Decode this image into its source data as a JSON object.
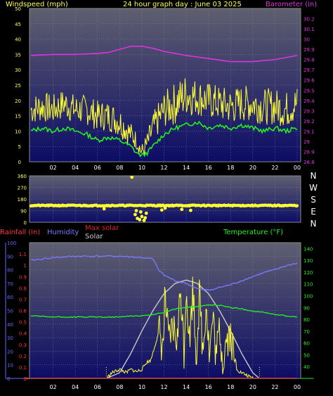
{
  "colors": {
    "background": "#000000",
    "plot_top": "#5f5f70",
    "plot_bottom": "#0c0c66",
    "wind_high": "#ffff33",
    "wind_avg": "#22ee22",
    "barometer": "#dd33dd",
    "direction": "#ffff33",
    "rain": "#ff3333",
    "humidity": "#7777ff",
    "max_solar": "#c8c8c8",
    "solar": "#ffff33",
    "temperature": "#22ee22",
    "tick_text": "#ffffff",
    "left_axis_text": "#ffff55",
    "baro_axis_text": "#dd33dd",
    "temp_axis_text": "#22ee22",
    "rain_axis_text": "#6666ff"
  },
  "chart_data": [
    {
      "type": "line",
      "title": "24 hour graph day : June 03 2025",
      "ylabel": "Windspeed (mph)",
      "y2label": "Barometer (in)",
      "x_ticks": [
        "02",
        "04",
        "06",
        "08",
        "10",
        "12",
        "14",
        "16",
        "18",
        "20",
        "22",
        "00"
      ],
      "ylim": [
        0,
        50
      ],
      "y_ticks": [
        0,
        5,
        10,
        15,
        20,
        25,
        30,
        35,
        40,
        45,
        50
      ],
      "y2lim": [
        28.8,
        30.3
      ],
      "y2_ticks": [
        "28.8",
        "28.9",
        "29",
        "29.1",
        "29.2",
        "29.3",
        "29.4",
        "29.5",
        "29.6",
        "29.7",
        "29.8",
        "29.9",
        "30",
        "30.1",
        "30.2"
      ],
      "grid": true,
      "series": [
        {
          "key": "barometer",
          "hours": [
            0,
            2,
            4,
            6,
            7,
            8,
            9,
            10,
            11,
            12,
            14,
            16,
            18,
            20,
            22,
            24
          ],
          "values": [
            29.84,
            29.85,
            29.85,
            29.86,
            29.87,
            29.9,
            29.93,
            29.93,
            29.91,
            29.88,
            29.84,
            29.81,
            29.78,
            29.78,
            29.8,
            29.84
          ]
        },
        {
          "key": "wind_avg",
          "hours": [
            0,
            1,
            2,
            3,
            4,
            5,
            6,
            7,
            8,
            9,
            9.5,
            10,
            10.5,
            11,
            12,
            13,
            14,
            15,
            16,
            17,
            18,
            19,
            20,
            21,
            22,
            23,
            24
          ],
          "values": [
            10,
            11,
            10,
            11,
            10,
            9,
            7,
            8,
            7,
            5,
            3,
            2,
            3,
            5,
            9,
            11,
            12,
            13,
            11,
            12,
            11,
            12,
            11,
            10,
            11,
            10,
            11
          ]
        },
        {
          "key": "wind_high",
          "hours": [
            0,
            1,
            2,
            3,
            4,
            5,
            6,
            7,
            8,
            9,
            9.5,
            10,
            10.5,
            11,
            12,
            13,
            14,
            15,
            16,
            17,
            18,
            19,
            20,
            21,
            22,
            23,
            24
          ],
          "values": [
            17,
            18,
            17,
            19,
            17,
            17,
            15,
            15,
            13,
            9,
            7,
            3,
            6,
            11,
            17,
            19,
            22,
            21,
            20,
            19,
            18,
            19,
            19,
            18,
            18,
            17,
            19
          ],
          "spread": [
            5,
            5,
            5,
            5,
            5,
            5,
            5,
            5,
            5,
            4,
            3,
            3,
            4,
            5,
            6,
            7,
            7,
            6,
            6,
            6,
            6,
            6,
            6,
            6,
            6,
            6,
            6
          ]
        }
      ]
    },
    {
      "type": "scatter",
      "title": "",
      "ylabel": "Wind direction",
      "x_ticks": [
        "02",
        "04",
        "06",
        "08",
        "10",
        "12",
        "14",
        "16",
        "18",
        "20",
        "22",
        "00"
      ],
      "ylim": [
        0,
        360
      ],
      "y_ticks": [
        "0",
        "90",
        "180",
        "270",
        "360"
      ],
      "compass": [
        "N",
        "W",
        "S",
        "E",
        "N"
      ],
      "series": [
        {
          "key": "direction",
          "hours": [
            0,
            24
          ],
          "values": [
            130,
            130
          ],
          "spread": 8
        },
        {
          "key": "direction_outliers",
          "hours": [
            9.1,
            9.4,
            9.6,
            9.8,
            10.0,
            10.2,
            10.4,
            9.5,
            9.9,
            10.3,
            11.8,
            13.6,
            14.4,
            6.6,
            12.1
          ],
          "values": [
            350,
            60,
            30,
            20,
            45,
            15,
            70,
            90,
            80,
            35,
            95,
            100,
            92,
            105,
            110
          ]
        }
      ]
    },
    {
      "type": "line",
      "title": "",
      "ylabel": "Rainfall (in)",
      "y_humidity_label": "Humidity",
      "max_solar_label": "Max solar",
      "solar_label": "Solar",
      "y2label": "Temperature (°F)",
      "x_ticks": [
        "02",
        "04",
        "06",
        "08",
        "10",
        "12",
        "14",
        "16",
        "18",
        "20",
        "22",
        "00"
      ],
      "humidity_lim": [
        0,
        100
      ],
      "humidity_ticks": [
        "0",
        "10",
        "20",
        "30",
        "40",
        "50",
        "60",
        "70",
        "80",
        "90",
        "100"
      ],
      "rain_lim": [
        0,
        1.2
      ],
      "rain_ticks": [
        "0",
        "0.1",
        "0.2",
        "0.3",
        "0.4",
        "0.5",
        "0.6",
        "0.7",
        "0.8",
        "0.9",
        "1",
        "1.1"
      ],
      "temp_lim": [
        30,
        145
      ],
      "temp_ticks": [
        "40",
        "50",
        "60",
        "70",
        "80",
        "90",
        "100",
        "110",
        "120",
        "130",
        "140"
      ],
      "series": [
        {
          "key": "humidity",
          "hours": [
            0,
            1,
            2,
            4,
            6,
            8,
            10,
            11,
            11.5,
            12,
            13,
            14,
            15,
            16,
            17,
            18,
            19,
            20,
            21,
            22,
            23,
            24
          ],
          "values": [
            87,
            88,
            89,
            90,
            90,
            90,
            89,
            88,
            80,
            76,
            72,
            70,
            66,
            65,
            67,
            69,
            72,
            75,
            78,
            80,
            83,
            85
          ]
        },
        {
          "key": "temperature",
          "hours": [
            0,
            2,
            4,
            6,
            8,
            9,
            10,
            11,
            12,
            13,
            14,
            15,
            16,
            17,
            18,
            19,
            20,
            21,
            22,
            23,
            24
          ],
          "values": [
            83,
            82,
            82,
            82,
            82,
            83,
            83,
            84,
            86,
            89,
            90,
            91,
            92,
            92,
            90,
            89,
            87,
            86,
            84,
            83,
            82
          ]
        },
        {
          "key": "max_solar",
          "hours": [
            6.8,
            8,
            9,
            10,
            11,
            12,
            13,
            14,
            15,
            16,
            17,
            18,
            19,
            20,
            20.6
          ],
          "values": [
            0,
            0.05,
            0.22,
            0.42,
            0.6,
            0.75,
            0.84,
            0.87,
            0.84,
            0.75,
            0.6,
            0.42,
            0.22,
            0.05,
            0
          ]
        },
        {
          "key": "solar",
          "hours": [
            0,
            6.8,
            7.3,
            8,
            8.6,
            9,
            9.5,
            10,
            10.4,
            10.8,
            11.2,
            11.6,
            11.9,
            12.1,
            12.4,
            12.8,
            13.2,
            13.5,
            13.8,
            14,
            14.3,
            14.6,
            14.9,
            15.2,
            15.5,
            15.8,
            16.1,
            16.4,
            16.7,
            17,
            17.3,
            17.6,
            18,
            18.4,
            18.8,
            19.2,
            19.6,
            20,
            20.6,
            24
          ],
          "values": [
            0,
            0,
            0.05,
            0.08,
            0.05,
            0.08,
            0.06,
            0.08,
            0.14,
            0.16,
            0.3,
            0.42,
            0.25,
            0.75,
            0.3,
            0.45,
            0.34,
            0.8,
            0.25,
            0.85,
            0.3,
            0.82,
            0.2,
            0.75,
            0.22,
            0.7,
            0.2,
            0.55,
            0.18,
            0.45,
            0.15,
            0.35,
            0.4,
            0.1,
            0.06,
            0.04,
            0.02,
            0,
            0,
            0
          ]
        },
        {
          "key": "rain",
          "hours": [
            0,
            24
          ],
          "values": [
            0,
            0
          ]
        }
      ]
    }
  ]
}
